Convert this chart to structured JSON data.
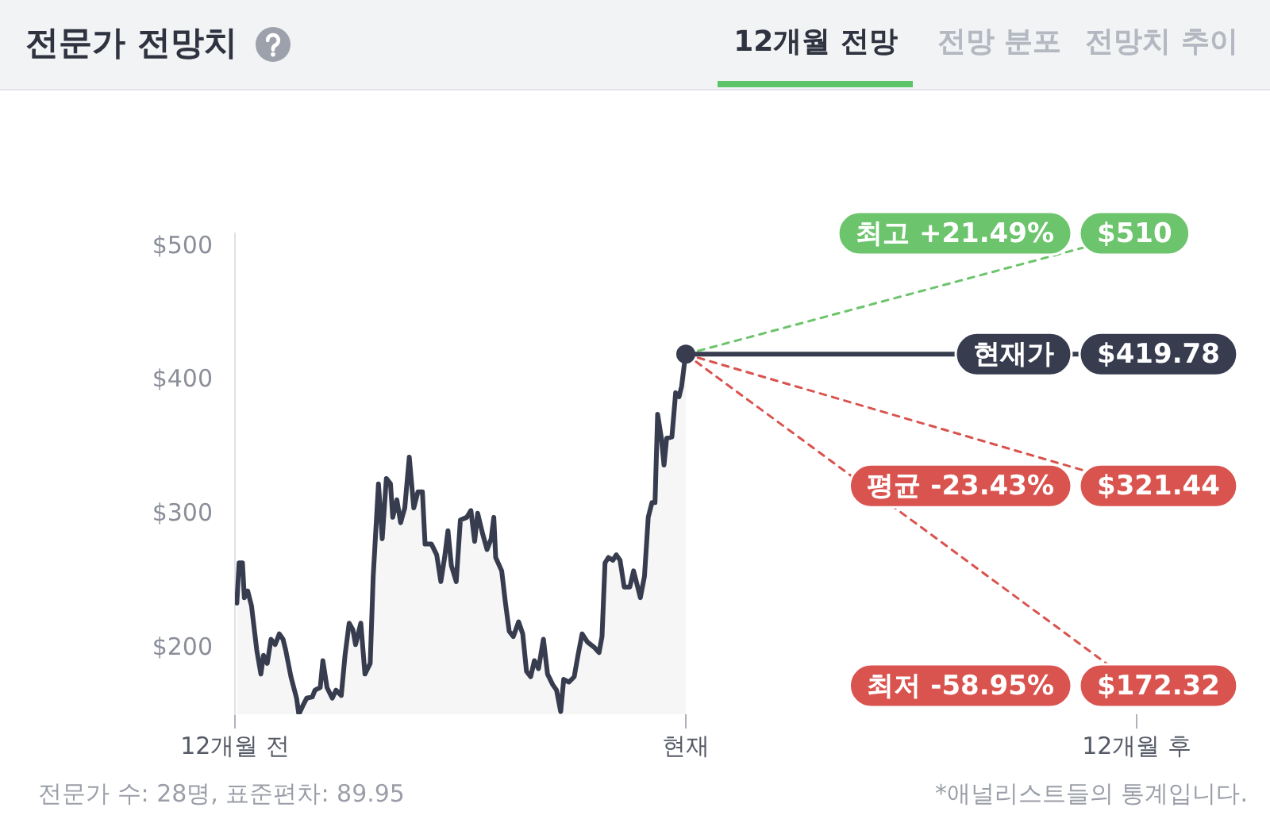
{
  "chart_data": {
    "type": "line",
    "title": "전문가 전망치",
    "annotations": [
      "12개월 전망",
      "전망 분포",
      "전망치 추이",
      "전문가 수: 28명, 표준편차: 89.95",
      "*애널리스트들의 통계입니다."
    ],
    "xlim": [
      -12,
      12
    ],
    "xticks": [
      {
        "value": -12,
        "label": "12개월 전"
      },
      {
        "value": 0,
        "label": "현재"
      },
      {
        "value": 12,
        "label": "12개월 후"
      }
    ],
    "ylim": [
      151,
      510
    ],
    "yticks": [
      {
        "value": 200,
        "label": "$200"
      },
      {
        "value": 300,
        "label": "$300"
      },
      {
        "value": 400,
        "label": "$400"
      },
      {
        "value": 500,
        "label": "$500"
      }
    ],
    "series": [
      {
        "type": "area",
        "color": "#373c4f",
        "marker": "none",
        "x": [
          -11.95,
          -11.89,
          -11.8,
          -11.75,
          -11.66,
          -11.56,
          -11.42,
          -11.31,
          -11.24,
          -11.14,
          -11.04,
          -10.93,
          -10.82,
          -10.72,
          -10.65,
          -10.51,
          -10.36,
          -10.3,
          -10.2,
          -10.09,
          -9.94,
          -9.87,
          -9.73,
          -9.66,
          -9.55,
          -9.41,
          -9.31,
          -9.17,
          -9.07,
          -8.96,
          -8.86,
          -8.79,
          -8.65,
          -8.54,
          -8.4,
          -8.32,
          -8.18,
          -8.08,
          -7.97,
          -7.86,
          -7.8,
          -7.69,
          -7.59,
          -7.48,
          -7.36,
          -7.24,
          -7.13,
          -7.01,
          -6.94,
          -6.77,
          -6.63,
          -6.52,
          -6.42,
          -6.33,
          -6.24,
          -6.11,
          -6.0,
          -5.83,
          -5.72,
          -5.62,
          -5.54,
          -5.41,
          -5.29,
          -5.18,
          -5.11,
          -5.06,
          -4.9,
          -4.8,
          -4.7,
          -4.59,
          -4.45,
          -4.34,
          -4.24,
          -4.13,
          -4.03,
          -3.92,
          -3.79,
          -3.68,
          -3.54,
          -3.44,
          -3.33,
          -3.25,
          -3.11,
          -2.97,
          -2.87,
          -2.76,
          -2.62,
          -2.44,
          -2.31,
          -2.23,
          -2.15,
          -2.06,
          -1.94,
          -1.85,
          -1.75,
          -1.64,
          -1.49,
          -1.39,
          -1.28,
          -1.21,
          -1.1,
          -1.0,
          -0.9,
          -0.82,
          -0.75,
          -0.65,
          -0.58,
          -0.51,
          -0.37,
          -0.27,
          -0.18,
          -0.11,
          -0.04,
          0
        ],
        "values": [
          234,
          264,
          264,
          238,
          243,
          232,
          199,
          181,
          195,
          189,
          207,
          203,
          211,
          207,
          199,
          179,
          163,
          151,
          157,
          163,
          164,
          169,
          171,
          191,
          171,
          163,
          169,
          165,
          195,
          219,
          214,
          203,
          219,
          181,
          189,
          254,
          323,
          282,
          327,
          323,
          298,
          311,
          294,
          305,
          343,
          305,
          317,
          317,
          278,
          278,
          270,
          250,
          268,
          288,
          262,
          250,
          296,
          298,
          303,
          280,
          301,
          286,
          274,
          282,
          298,
          268,
          258,
          234,
          213,
          209,
          220,
          211,
          183,
          179,
          191,
          185,
          207,
          181,
          173,
          169,
          153,
          177,
          175,
          179,
          195,
          211,
          205,
          201,
          197,
          209,
          264,
          268,
          266,
          270,
          266,
          246,
          246,
          258,
          246,
          238,
          254,
          298,
          309,
          309,
          375,
          357,
          337,
          357,
          358,
          391,
          388,
          396,
          412,
          419.78
        ]
      },
      {
        "name": "최고 +21.49%",
        "color": "#6cc46c",
        "line_style": "dashed",
        "x": [
          0,
          12
        ],
        "values": [
          419.78,
          510
        ],
        "value_labels": [
          null,
          "$510"
        ]
      },
      {
        "name": "현재가",
        "color": "#373c4f",
        "line_style": "solid",
        "x": [
          0,
          12
        ],
        "values": [
          419.78,
          419.78
        ],
        "value_labels": [
          null,
          "$419.78"
        ]
      },
      {
        "name": "평균 -23.43%",
        "color": "#d9534f",
        "line_style": "dashed",
        "x": [
          0,
          12
        ],
        "values": [
          419.78,
          321.44
        ],
        "value_labels": [
          null,
          "$321.44"
        ]
      },
      {
        "name": "최저 -58.95%",
        "color": "#d9534f",
        "line_style": "dashed",
        "x": [
          0,
          12
        ],
        "values": [
          419.78,
          172.32
        ],
        "value_labels": [
          null,
          "$172.32"
        ]
      },
      {
        "type": "scatter",
        "color": "#373c4f",
        "marker": "circle",
        "x": [
          0
        ],
        "values": [
          419.78
        ]
      }
    ]
  }
}
